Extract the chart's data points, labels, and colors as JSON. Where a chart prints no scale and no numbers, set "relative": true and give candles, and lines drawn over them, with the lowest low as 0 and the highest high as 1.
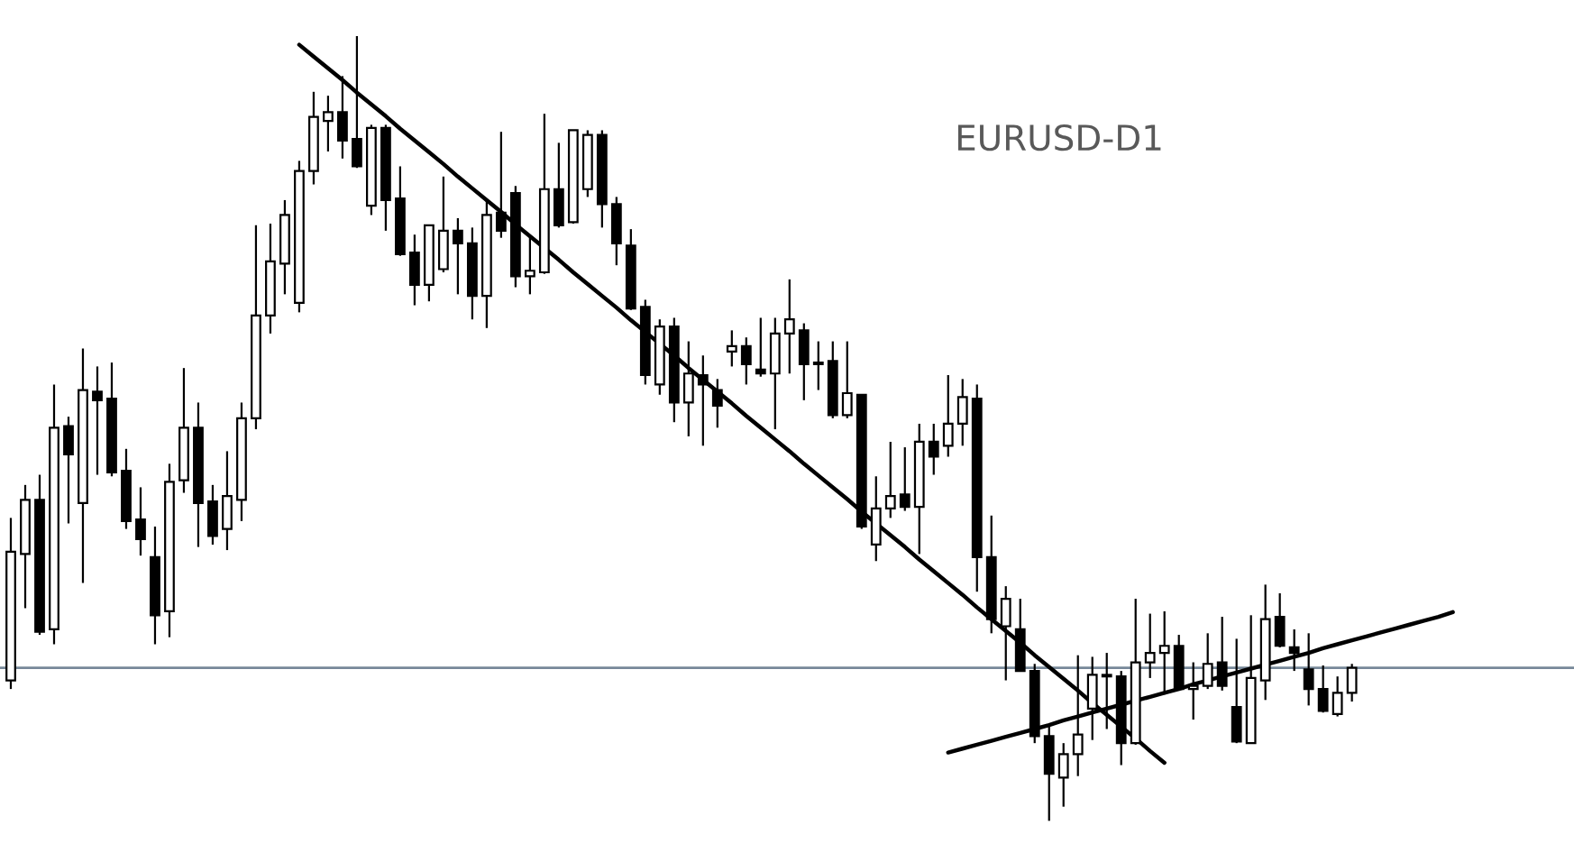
{
  "chart_data": {
    "type": "candlestick",
    "title": "EURUSD-D1",
    "relative": true,
    "color": "#000000",
    "categories": [
      null,
      null,
      null,
      null,
      null,
      null,
      null,
      null,
      null,
      null,
      null,
      null,
      null,
      null,
      null,
      null,
      null,
      null,
      null,
      null,
      null,
      null,
      null,
      null,
      null,
      null,
      null,
      null,
      null,
      null,
      null,
      null,
      null,
      null,
      null,
      null,
      null,
      null,
      null,
      null,
      null,
      null,
      null,
      null,
      null,
      null,
      null,
      null,
      null,
      null,
      null,
      null,
      null,
      null,
      null,
      null,
      null,
      null,
      null,
      null,
      null,
      null,
      null,
      null,
      null,
      null,
      null,
      null,
      null,
      null,
      null,
      null,
      null,
      null,
      null,
      null,
      null,
      null,
      null,
      null,
      null,
      null,
      null,
      null,
      null,
      null,
      null,
      null,
      null,
      null,
      null,
      null,
      null,
      null,
      null,
      null,
      null,
      null,
      null,
      null,
      null
    ],
    "ohlc": [
      [
        0.179,
        0.386,
        0.168,
        0.343
      ],
      [
        0.34,
        0.428,
        0.271,
        0.409
      ],
      [
        0.409,
        0.441,
        0.237,
        0.241
      ],
      [
        0.244,
        0.556,
        0.225,
        0.501
      ],
      [
        0.503,
        0.515,
        0.379,
        0.467
      ],
      [
        0.405,
        0.602,
        0.303,
        0.549
      ],
      [
        0.547,
        0.579,
        0.441,
        0.536
      ],
      [
        0.538,
        0.584,
        0.439,
        0.444
      ],
      [
        0.446,
        0.474,
        0.372,
        0.382
      ],
      [
        0.384,
        0.425,
        0.338,
        0.359
      ],
      [
        0.336,
        0.375,
        0.225,
        0.262
      ],
      [
        0.267,
        0.455,
        0.234,
        0.432
      ],
      [
        0.434,
        0.577,
        0.418,
        0.501
      ],
      [
        0.501,
        0.533,
        0.349,
        0.405
      ],
      [
        0.407,
        0.428,
        0.352,
        0.363
      ],
      [
        0.372,
        0.471,
        0.345,
        0.414
      ],
      [
        0.409,
        0.533,
        0.382,
        0.513
      ],
      [
        0.513,
        0.759,
        0.499,
        0.644
      ],
      [
        0.644,
        0.761,
        0.621,
        0.713
      ],
      [
        0.71,
        0.791,
        0.671,
        0.772
      ],
      [
        0.66,
        0.841,
        0.648,
        0.828
      ],
      [
        0.828,
        0.929,
        0.811,
        0.897
      ],
      [
        0.892,
        0.924,
        0.853,
        0.903
      ],
      [
        0.903,
        0.949,
        0.844,
        0.867
      ],
      [
        0.869,
        1.0,
        0.832,
        0.834
      ],
      [
        0.784,
        0.887,
        0.772,
        0.883
      ],
      [
        0.883,
        0.887,
        0.752,
        0.791
      ],
      [
        0.793,
        0.834,
        0.72,
        0.722
      ],
      [
        0.724,
        0.747,
        0.657,
        0.683
      ],
      [
        0.683,
        0.759,
        0.662,
        0.759
      ],
      [
        0.703,
        0.821,
        0.699,
        0.752
      ],
      [
        0.752,
        0.768,
        0.671,
        0.736
      ],
      [
        0.736,
        0.756,
        0.639,
        0.669
      ],
      [
        0.669,
        0.793,
        0.628,
        0.772
      ],
      [
        0.775,
        0.878,
        0.743,
        0.752
      ],
      [
        0.8,
        0.809,
        0.68,
        0.694
      ],
      [
        0.694,
        0.743,
        0.671,
        0.701
      ],
      [
        0.699,
        0.901,
        0.697,
        0.805
      ],
      [
        0.805,
        0.864,
        0.756,
        0.759
      ],
      [
        0.763,
        0.88,
        0.761,
        0.88
      ],
      [
        0.805,
        0.88,
        0.795,
        0.874
      ],
      [
        0.874,
        0.88,
        0.756,
        0.786
      ],
      [
        0.786,
        0.795,
        0.708,
        0.736
      ],
      [
        0.733,
        0.754,
        0.651,
        0.653
      ],
      [
        0.655,
        0.664,
        0.556,
        0.568
      ],
      [
        0.556,
        0.639,
        0.543,
        0.63
      ],
      [
        0.63,
        0.641,
        0.508,
        0.533
      ],
      [
        0.533,
        0.611,
        0.49,
        0.57
      ],
      [
        0.568,
        0.593,
        0.478,
        0.556
      ],
      [
        0.549,
        0.563,
        0.501,
        0.529
      ],
      [
        0.598,
        0.625,
        0.579,
        0.605
      ],
      [
        0.605,
        0.616,
        0.556,
        0.582
      ],
      [
        0.575,
        0.641,
        0.566,
        0.57
      ],
      [
        0.57,
        0.641,
        0.499,
        0.621
      ],
      [
        0.621,
        0.69,
        0.57,
        0.639
      ],
      [
        0.625,
        0.634,
        0.536,
        0.582
      ],
      [
        0.584,
        0.611,
        0.549,
        0.582
      ],
      [
        0.586,
        0.611,
        0.513,
        0.517
      ],
      [
        0.517,
        0.611,
        0.513,
        0.545
      ],
      [
        0.543,
        0.543,
        0.372,
        0.375
      ],
      [
        0.352,
        0.439,
        0.331,
        0.398
      ],
      [
        0.398,
        0.483,
        0.386,
        0.414
      ],
      [
        0.416,
        0.476,
        0.395,
        0.4
      ],
      [
        0.4,
        0.506,
        0.34,
        0.483
      ],
      [
        0.483,
        0.506,
        0.441,
        0.464
      ],
      [
        0.478,
        0.568,
        0.464,
        0.506
      ],
      [
        0.506,
        0.563,
        0.478,
        0.54
      ],
      [
        0.538,
        0.556,
        0.292,
        0.336
      ],
      [
        0.336,
        0.389,
        0.239,
        0.257
      ],
      [
        0.248,
        0.299,
        0.179,
        0.283
      ],
      [
        0.244,
        0.283,
        0.191,
        0.191
      ],
      [
        0.191,
        0.2,
        0.099,
        0.108
      ],
      [
        0.108,
        0.12,
        0.0,
        0.06
      ],
      [
        0.055,
        0.099,
        0.018,
        0.085
      ],
      [
        0.085,
        0.211,
        0.057,
        0.11
      ],
      [
        0.143,
        0.209,
        0.103,
        0.186
      ],
      [
        0.186,
        0.214,
        0.117,
        0.184
      ],
      [
        0.184,
        0.191,
        0.071,
        0.099
      ],
      [
        0.099,
        0.283,
        0.097,
        0.202
      ],
      [
        0.202,
        0.264,
        0.182,
        0.214
      ],
      [
        0.214,
        0.267,
        0.161,
        0.223
      ],
      [
        0.223,
        0.237,
        0.166,
        0.168
      ],
      [
        0.168,
        0.202,
        0.129,
        0.172
      ],
      [
        0.172,
        0.239,
        0.168,
        0.2
      ],
      [
        0.202,
        0.26,
        0.166,
        0.172
      ],
      [
        0.145,
        0.232,
        0.099,
        0.101
      ],
      [
        0.099,
        0.262,
        0.099,
        0.182
      ],
      [
        0.179,
        0.301,
        0.154,
        0.257
      ],
      [
        0.26,
        0.29,
        0.221,
        0.223
      ],
      [
        0.221,
        0.244,
        0.191,
        0.214
      ],
      [
        0.193,
        0.239,
        0.147,
        0.168
      ],
      [
        0.168,
        0.198,
        0.138,
        0.14
      ],
      [
        0.136,
        0.184,
        0.133,
        0.163
      ],
      [
        0.163,
        0.2,
        0.152,
        0.195
      ],
      null,
      null,
      null,
      null,
      null,
      null,
      null
    ],
    "series": [
      {
        "type": "line",
        "color": "#000000",
        "values": [
          null,
          null,
          null,
          null,
          null,
          null,
          null,
          null,
          null,
          null,
          null,
          null,
          null,
          null,
          null,
          null,
          null,
          null,
          null,
          null,
          0.989,
          0.974,
          0.959,
          0.944,
          0.928,
          0.913,
          0.898,
          0.882,
          0.867,
          0.852,
          0.837,
          0.821,
          0.806,
          0.791,
          0.776,
          0.76,
          0.745,
          0.73,
          0.715,
          0.699,
          0.684,
          0.669,
          0.654,
          0.638,
          0.623,
          0.608,
          0.593,
          0.577,
          0.562,
          0.547,
          0.532,
          0.516,
          0.501,
          0.486,
          0.471,
          0.455,
          0.44,
          0.425,
          0.41,
          0.394,
          0.379,
          0.364,
          0.349,
          0.333,
          0.318,
          0.303,
          0.288,
          0.272,
          0.257,
          0.242,
          0.227,
          0.211,
          0.196,
          0.181,
          0.166,
          0.15,
          0.135,
          0.12,
          0.105,
          0.089,
          0.074,
          null,
          null,
          null,
          null,
          null,
          null,
          null,
          null,
          null,
          null,
          null,
          null,
          null,
          null,
          null,
          null,
          null,
          null,
          null,
          null
        ]
      },
      {
        "type": "line",
        "color": "#000000",
        "values": [
          null,
          null,
          null,
          null,
          null,
          null,
          null,
          null,
          null,
          null,
          null,
          null,
          null,
          null,
          null,
          null,
          null,
          null,
          null,
          null,
          null,
          null,
          null,
          null,
          null,
          null,
          null,
          null,
          null,
          null,
          null,
          null,
          null,
          null,
          null,
          null,
          null,
          null,
          null,
          null,
          null,
          null,
          null,
          null,
          null,
          null,
          null,
          null,
          null,
          null,
          null,
          null,
          null,
          null,
          null,
          null,
          null,
          null,
          null,
          null,
          null,
          null,
          null,
          null,
          null,
          0.087,
          0.092,
          0.097,
          0.102,
          0.107,
          0.112,
          0.117,
          0.122,
          0.128,
          0.133,
          0.138,
          0.143,
          0.148,
          0.153,
          0.158,
          0.163,
          0.168,
          0.174,
          0.179,
          0.184,
          0.189,
          0.194,
          0.199,
          0.204,
          0.209,
          0.214,
          0.22,
          0.225,
          0.23,
          0.235,
          0.24,
          0.245,
          0.25,
          0.255,
          0.26,
          0.266
        ]
      }
    ],
    "ref_lines": [
      {
        "axis": "y",
        "value": 0.195,
        "color": "#778899"
      }
    ]
  }
}
